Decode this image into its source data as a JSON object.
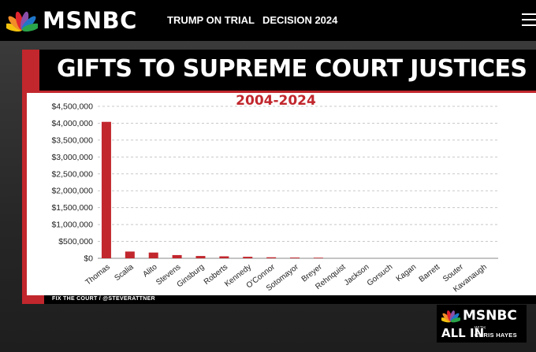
{
  "header": {
    "logo_text": "MSNBC",
    "nav": [
      "TRUMP ON TRIAL",
      "DECISION 2024"
    ]
  },
  "graphic": {
    "title": "GIFTS TO SUPREME COURT JUSTICES",
    "subtitle": "2004-2024",
    "source": "FIX THE COURT / @STEVERATTNER"
  },
  "chart_data": {
    "type": "bar",
    "categories": [
      "Thomas",
      "Scalia",
      "Alito",
      "Stevens",
      "Ginsburg",
      "Roberts",
      "Kennedy",
      "O'Connor",
      "Sotomayor",
      "Breyer",
      "Rehnquist",
      "Jackson",
      "Gorsuch",
      "Kagan",
      "Barrett",
      "Souter",
      "Kavanaugh"
    ],
    "values": [
      4040000,
      200000,
      170000,
      95000,
      68000,
      58000,
      45000,
      30000,
      22000,
      18000,
      0,
      0,
      0,
      0,
      0,
      0,
      0
    ],
    "title": "",
    "xlabel": "",
    "ylabel": "",
    "ylim": [
      0,
      4500000
    ],
    "yticks": [
      "$0",
      "$500,000",
      "$1,000,000",
      "$1,500,000",
      "$2,000,000",
      "$2,500,000",
      "$3,000,000",
      "$3,500,000",
      "$4,000,000",
      "$4,500,000"
    ],
    "grid": true,
    "bar_color": "#c1272d"
  },
  "bug": {
    "network": "MSNBC",
    "show": "ALL IN",
    "with": "WITH",
    "host": "CHRIS HAYES"
  },
  "colors": {
    "accent": "#c1272d",
    "background": "#000000"
  }
}
